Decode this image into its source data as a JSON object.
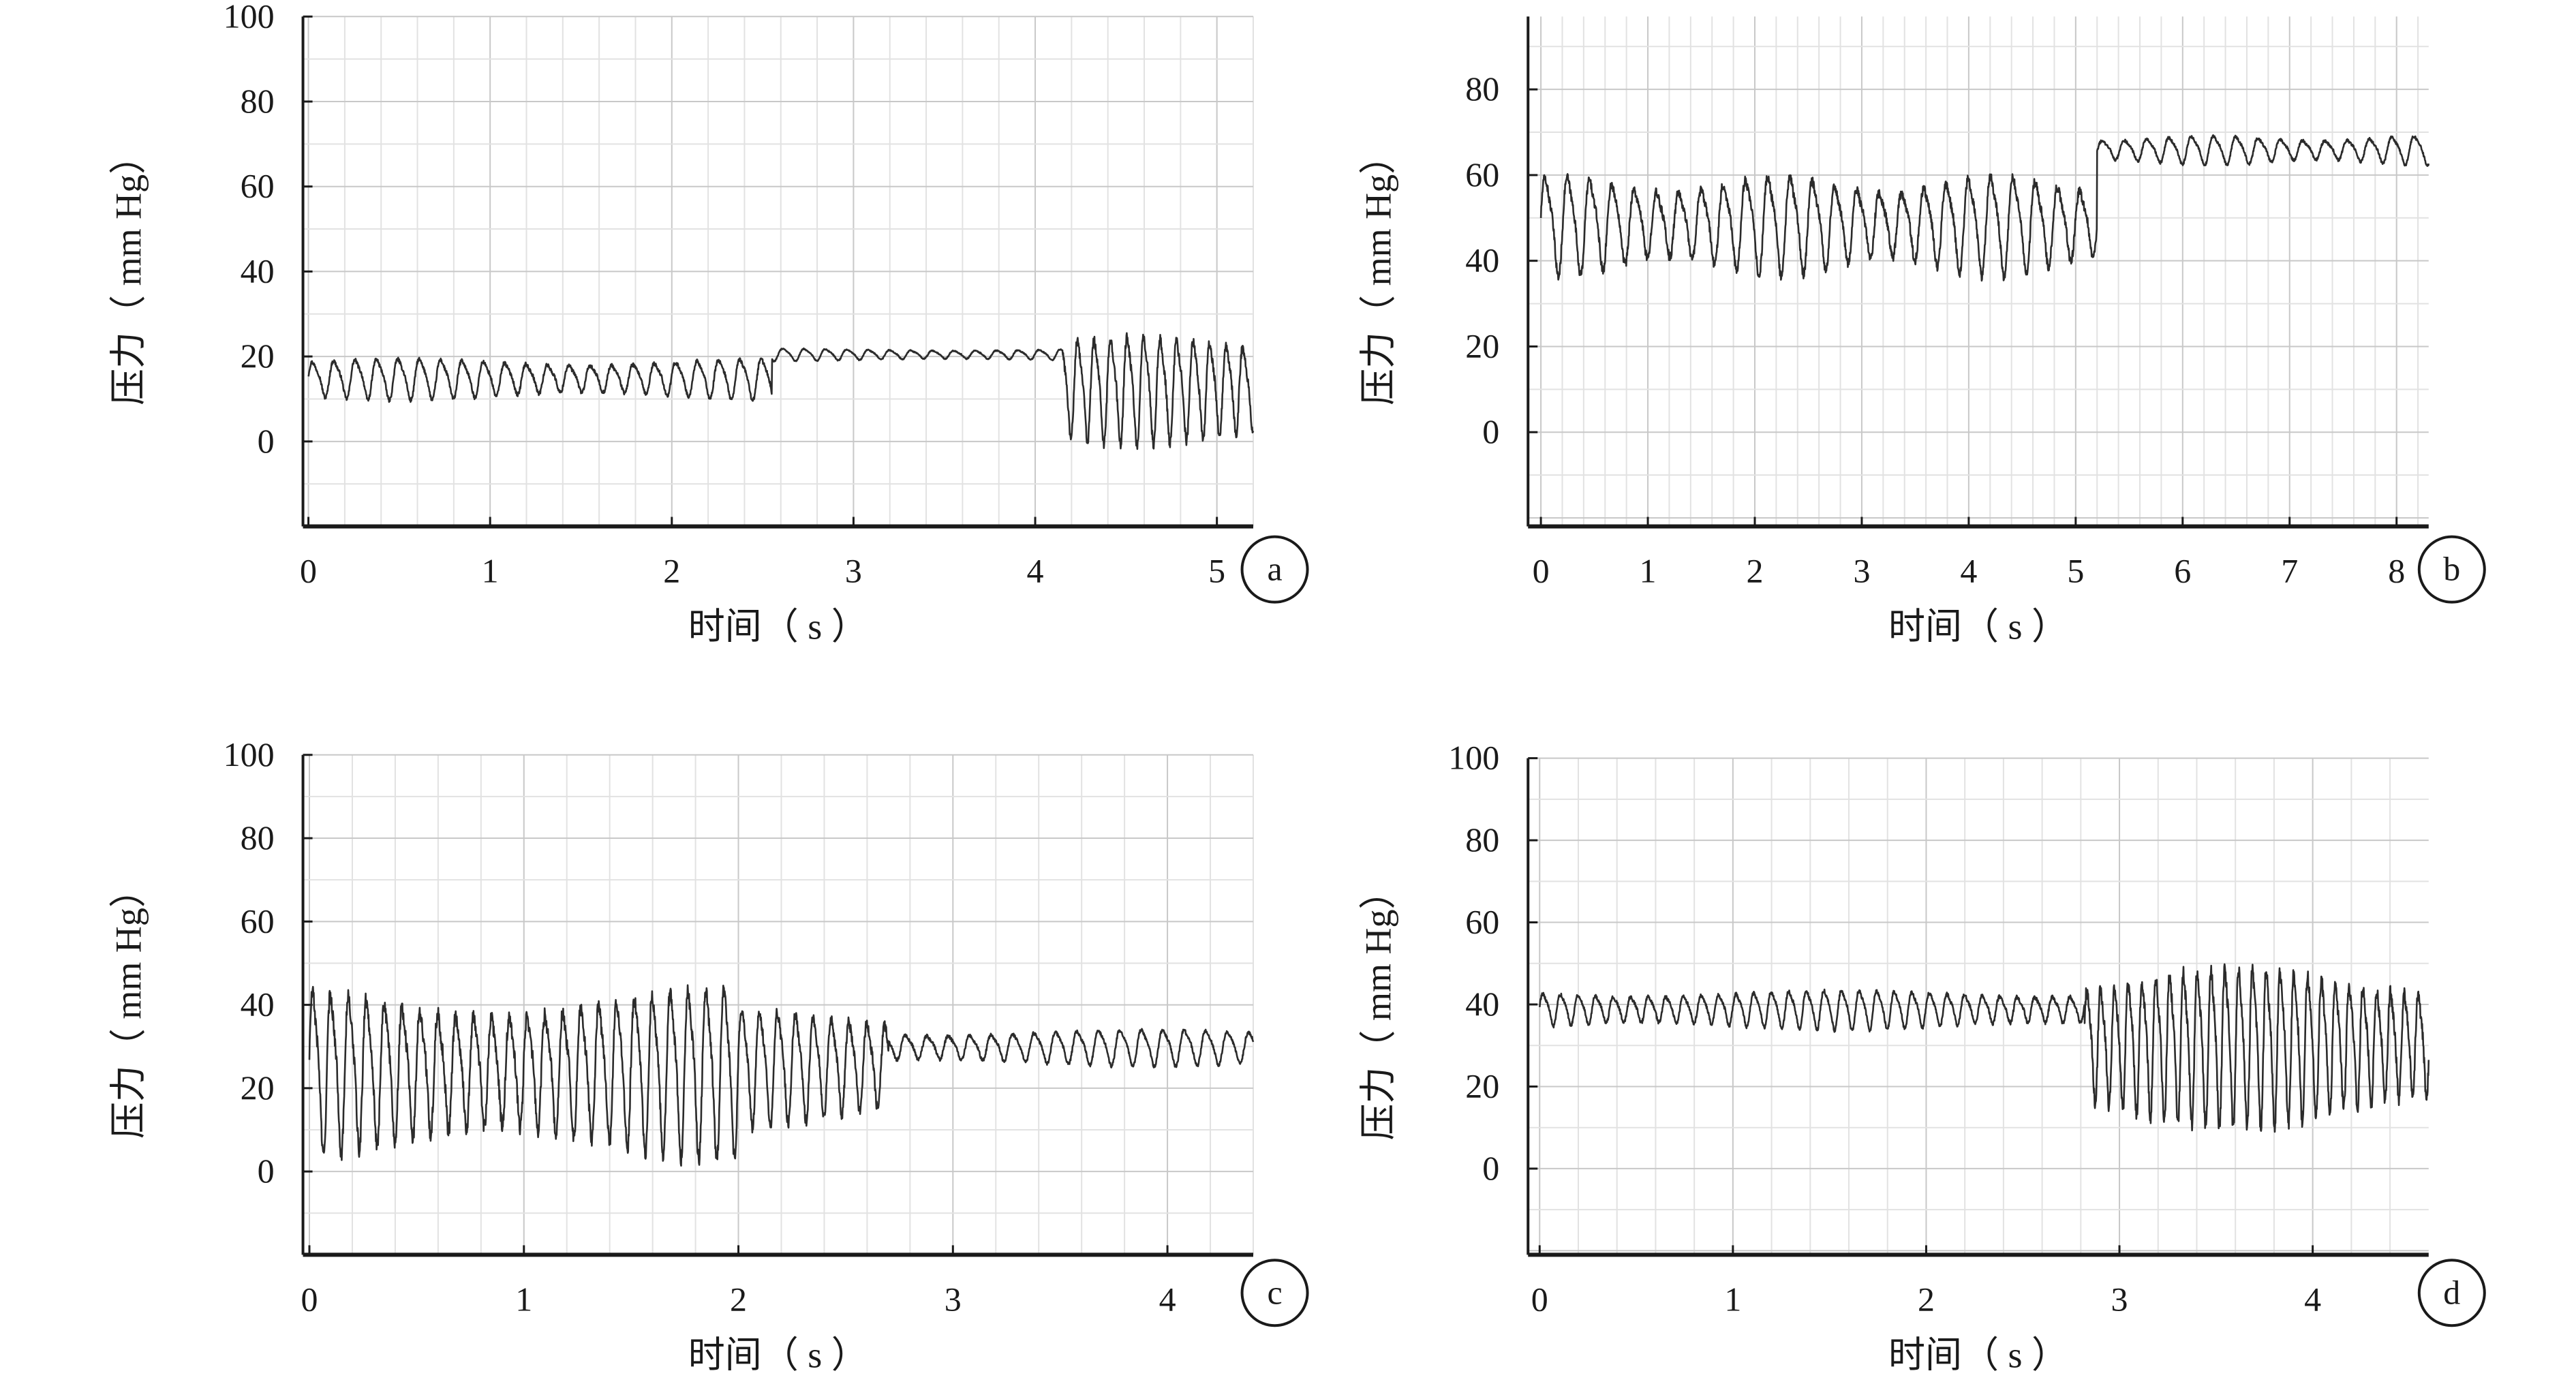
{
  "figure": {
    "colors": {
      "line": "#2b2b2b",
      "axis": "#1a1a1a",
      "grid_major": "#c8c8c8",
      "grid_minor": "#e2e2e2",
      "background": "#ffffff"
    }
  },
  "chart_data": [
    {
      "id": "a",
      "type": "line",
      "panel_label": "a",
      "xlabel": "时间（ s ）",
      "ylabel": "压力（ mm Hg）",
      "xlim": [
        -0.03,
        5.2
      ],
      "ylim": [
        -20,
        100
      ],
      "x_ticks": [
        0,
        1,
        2,
        3,
        4,
        5
      ],
      "x_tick_labels": [
        "0",
        "1",
        "2",
        "3",
        "4",
        "5"
      ],
      "y_ticks": [
        0,
        20,
        40,
        60,
        80,
        100
      ],
      "y_tick_labels": [
        "0",
        "20",
        "40",
        "60",
        "80",
        "100"
      ],
      "grid": "on",
      "series": [
        {
          "x_range": [
            0,
            5.2
          ],
          "segments": [
            {
              "x_end": 2.55,
              "mean": 15,
              "amplitude": 5,
              "frequency_hz": 8.5
            },
            {
              "x_end": 4.15,
              "mean": 20.5,
              "amplitude": 1.5,
              "frequency_hz": 8.5
            },
            {
              "x_end": 5.2,
              "mean": 13,
              "amplitude": 13,
              "frequency_hz": 11
            }
          ]
        }
      ]
    },
    {
      "id": "b",
      "type": "line",
      "panel_label": "b",
      "xlabel": "时间（ s ）",
      "ylabel": "压力（ mm Hg）",
      "xlim": [
        -0.12,
        8.3
      ],
      "ylim": [
        -22,
        97
      ],
      "x_ticks": [
        0,
        1,
        2,
        3,
        4,
        5,
        6,
        7,
        8
      ],
      "x_tick_labels": [
        "0",
        "1",
        "2",
        "3",
        "4",
        "5",
        "6",
        "7",
        "8"
      ],
      "y_ticks": [
        0,
        20,
        40,
        60,
        80
      ],
      "y_tick_labels": [
        "0",
        "20",
        "40",
        "60",
        "80"
      ],
      "grid": "on",
      "series": [
        {
          "x_range": [
            0,
            8.3
          ],
          "segments": [
            {
              "x_end": 5.2,
              "mean": 49,
              "amplitude": 12,
              "frequency_hz": 4.8
            },
            {
              "x_end": 8.3,
              "mean": 66,
              "amplitude": 3.5,
              "frequency_hz": 4.8
            }
          ]
        }
      ]
    },
    {
      "id": "c",
      "type": "line",
      "panel_label": "c",
      "xlabel": "时间（ s ）",
      "ylabel": "压力（ mm Hg）",
      "xlim": [
        -0.03,
        4.4
      ],
      "ylim": [
        -20,
        100
      ],
      "x_ticks": [
        0,
        1,
        2,
        3,
        4
      ],
      "x_tick_labels": [
        "0",
        "1",
        "2",
        "3",
        "4"
      ],
      "y_ticks": [
        0,
        20,
        40,
        60,
        80,
        100
      ],
      "y_tick_labels": [
        "0",
        "20",
        "40",
        "60",
        "80",
        "100"
      ],
      "grid": "on",
      "series": [
        {
          "x_range": [
            0,
            4.4
          ],
          "segments": [
            {
              "x_end": 2.0,
              "mean": 25,
              "amplitude": 21,
              "frequency_hz": 12
            },
            {
              "x_end": 2.7,
              "mean": 26,
              "amplitude": 15,
              "frequency_hz": 12
            },
            {
              "x_end": 4.4,
              "mean": 30,
              "amplitude": 4.5,
              "frequency_hz": 10
            }
          ]
        }
      ]
    },
    {
      "id": "d",
      "type": "line",
      "panel_label": "d",
      "xlabel": "时间（ s ）",
      "ylabel": "压力（ mm Hg）",
      "xlim": [
        -0.06,
        4.6
      ],
      "ylim": [
        -21,
        100
      ],
      "x_ticks": [
        0,
        1,
        2,
        3,
        4
      ],
      "x_tick_labels": [
        "0",
        "1",
        "2",
        "3",
        "4"
      ],
      "y_ticks": [
        0,
        20,
        40,
        60,
        80,
        100
      ],
      "y_tick_labels": [
        "0",
        "20",
        "40",
        "60",
        "80",
        "100"
      ],
      "grid": "on",
      "series": [
        {
          "x_range": [
            0,
            4.6
          ],
          "segments": [
            {
              "x_end": 2.82,
              "mean": 39,
              "amplitude": 5,
              "frequency_hz": 11
            },
            {
              "x_end": 4.6,
              "mean": 31,
              "amplitude": 20,
              "frequency_hz": 14
            }
          ]
        }
      ]
    }
  ]
}
